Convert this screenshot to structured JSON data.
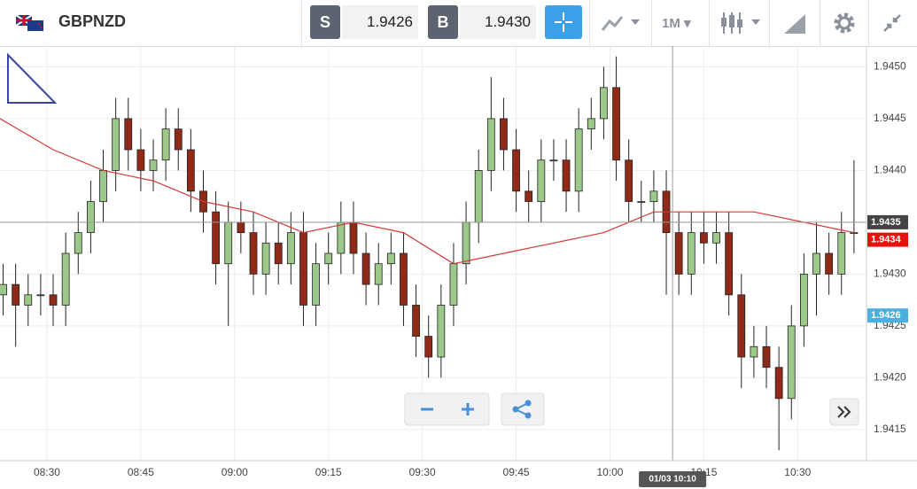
{
  "header": {
    "symbol": "GBPNZD",
    "sell_label": "S",
    "sell_price": "1.9426",
    "buy_label": "B",
    "buy_price": "1.9430",
    "timeframe": "1M"
  },
  "chart_data": {
    "type": "candlestick",
    "xlim": [
      502.5,
      641
    ],
    "ylim": [
      1.9412,
      1.9452
    ],
    "xticks": [
      {
        "value": 510,
        "label": "08:30"
      },
      {
        "value": 525,
        "label": "08:45"
      },
      {
        "value": 540,
        "label": "09:00"
      },
      {
        "value": 555,
        "label": "09:15"
      },
      {
        "value": 570,
        "label": "09:30"
      },
      {
        "value": 585,
        "label": "09:45"
      },
      {
        "value": 600,
        "label": "10:00"
      },
      {
        "value": 615,
        "label": "10:15"
      },
      {
        "value": 630,
        "label": "10:30"
      }
    ],
    "yticks": [
      1.9415,
      {
        "value": 1.942,
        "label": "1.9420"
      },
      1.9425,
      {
        "value": 1.943,
        "label": "1.9430"
      },
      1.9435,
      {
        "value": 1.944,
        "label": "1.9440"
      },
      1.9445,
      {
        "value": 1.945,
        "label": "1.9450"
      }
    ],
    "grid": true,
    "color_up": "#9cc98a",
    "color_down": "#8e2a17",
    "x": [
      503,
      505,
      507,
      509,
      511,
      513,
      515,
      517,
      519,
      521,
      523,
      525,
      527,
      529,
      531,
      533,
      535,
      537,
      539,
      541,
      543,
      545,
      547,
      549,
      551,
      553,
      555,
      557,
      559,
      561,
      563,
      565,
      567,
      569,
      571,
      573,
      575,
      577,
      579,
      581,
      583,
      585,
      587,
      589,
      591,
      593,
      595,
      597,
      599,
      601,
      603,
      605,
      607,
      609,
      611,
      613,
      615,
      617,
      619,
      621,
      623,
      625,
      627,
      629,
      631,
      633,
      635,
      637,
      639
    ],
    "open": [
      1.9428,
      1.9429,
      1.9427,
      1.9428,
      1.9428,
      1.9427,
      1.9432,
      1.9434,
      1.9437,
      1.944,
      1.9445,
      1.9442,
      1.944,
      1.9441,
      1.9444,
      1.9442,
      1.9438,
      1.9436,
      1.9431,
      1.9435,
      1.9434,
      1.943,
      1.9433,
      1.9431,
      1.9434,
      1.9427,
      1.9431,
      1.9432,
      1.9435,
      1.9432,
      1.9429,
      1.9431,
      1.9432,
      1.9427,
      1.9424,
      1.9422,
      1.9427,
      1.9431,
      1.9435,
      1.944,
      1.9445,
      1.9442,
      1.9438,
      1.9437,
      1.9441,
      1.9441,
      1.9438,
      1.9444,
      1.9445,
      1.9448,
      1.9441,
      1.9437,
      1.9437,
      1.9438,
      1.9434,
      1.943,
      1.9434,
      1.9433,
      1.9434,
      1.9428,
      1.9422,
      1.9423,
      1.9421,
      1.9418,
      1.9425,
      1.943,
      1.9432,
      1.943,
      1.9434
    ],
    "high": [
      1.9431,
      1.9431,
      1.943,
      1.943,
      1.943,
      1.9434,
      1.9436,
      1.9439,
      1.9442,
      1.9447,
      1.9447,
      1.9444,
      1.9443,
      1.9446,
      1.9446,
      1.9444,
      1.944,
      1.9438,
      1.9437,
      1.9437,
      1.9436,
      1.9435,
      1.9435,
      1.9436,
      1.9436,
      1.9433,
      1.9434,
      1.9437,
      1.9437,
      1.9434,
      1.9433,
      1.9434,
      1.9434,
      1.9429,
      1.9426,
      1.9429,
      1.9433,
      1.9437,
      1.9442,
      1.9449,
      1.9447,
      1.9444,
      1.944,
      1.9443,
      1.9443,
      1.9443,
      1.9446,
      1.9447,
      1.945,
      1.9451,
      1.9443,
      1.9439,
      1.944,
      1.944,
      1.9436,
      1.9436,
      1.9436,
      1.9436,
      1.9436,
      1.943,
      1.9425,
      1.9425,
      1.9423,
      1.9427,
      1.9432,
      1.9435,
      1.9434,
      1.9436,
      1.9441
    ],
    "low": [
      1.9426,
      1.9423,
      1.9425,
      1.9426,
      1.9425,
      1.9425,
      1.943,
      1.9432,
      1.9435,
      1.9438,
      1.944,
      1.9438,
      1.9438,
      1.9439,
      1.944,
      1.9436,
      1.9434,
      1.9429,
      1.9425,
      1.9432,
      1.9428,
      1.9428,
      1.9429,
      1.9429,
      1.9425,
      1.9425,
      1.9429,
      1.943,
      1.943,
      1.9427,
      1.9427,
      1.9429,
      1.9425,
      1.9422,
      1.942,
      1.942,
      1.9425,
      1.9429,
      1.9433,
      1.9438,
      1.944,
      1.9436,
      1.9435,
      1.9435,
      1.9439,
      1.9436,
      1.9436,
      1.9442,
      1.9443,
      1.9439,
      1.9435,
      1.9435,
      1.9435,
      1.9428,
      1.9428,
      1.9428,
      1.9431,
      1.9431,
      1.9426,
      1.9419,
      1.942,
      1.9419,
      1.9413,
      1.9416,
      1.9423,
      1.9426,
      1.9428,
      1.9428,
      1.9432
    ],
    "close": [
      1.9429,
      1.9427,
      1.9428,
      1.9428,
      1.9427,
      1.9432,
      1.9434,
      1.9437,
      1.944,
      1.9445,
      1.9442,
      1.944,
      1.9441,
      1.9444,
      1.9442,
      1.9438,
      1.9436,
      1.9431,
      1.9435,
      1.9434,
      1.943,
      1.9433,
      1.9431,
      1.9434,
      1.9427,
      1.9431,
      1.9432,
      1.9435,
      1.9432,
      1.9429,
      1.9431,
      1.9432,
      1.9427,
      1.9424,
      1.9422,
      1.9427,
      1.9431,
      1.9435,
      1.944,
      1.9445,
      1.9442,
      1.9438,
      1.9437,
      1.9441,
      1.9441,
      1.9438,
      1.9444,
      1.9445,
      1.9448,
      1.9441,
      1.9437,
      1.9437,
      1.9438,
      1.9434,
      1.943,
      1.9434,
      1.9433,
      1.9434,
      1.9428,
      1.9422,
      1.9423,
      1.9421,
      1.9418,
      1.9425,
      1.943,
      1.9432,
      1.943,
      1.9434,
      1.9434
    ],
    "ma": {
      "color": "#d43a3a",
      "x": [
        502.5,
        511,
        519,
        527,
        535,
        543,
        551,
        559,
        567,
        575,
        583,
        591,
        599,
        607,
        615,
        623,
        631,
        639
      ],
      "values": [
        1.9445,
        1.9442,
        1.944,
        1.9439,
        1.9437,
        1.9436,
        1.9434,
        1.9435,
        1.9434,
        1.9431,
        1.9432,
        1.9433,
        1.9434,
        1.9436,
        1.9436,
        1.9436,
        1.9435,
        1.9434
      ]
    },
    "crosshair": {
      "x": 610,
      "x_label": "01/03 10:10",
      "y": 1.9435
    },
    "last_price": {
      "value": 1.9434,
      "color": "#e8120c"
    },
    "bid_price": {
      "value": 1.9426,
      "color": "#4ab0e0"
    }
  }
}
